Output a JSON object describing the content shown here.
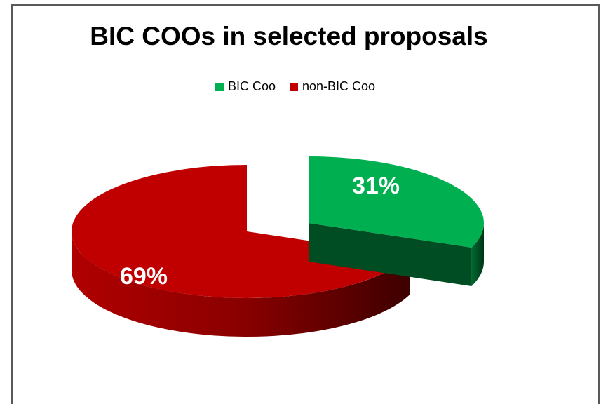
{
  "chart_data": {
    "type": "pie",
    "title": "BIC COOs in selected proposals",
    "legend_position": "top",
    "slices": [
      {
        "name": "BIC Coo",
        "value": 31,
        "label": "31%",
        "color": "#00b050",
        "side_color": "#004d24",
        "exploded": true
      },
      {
        "name": "non-BIC Coo",
        "value": 69,
        "label": "69%",
        "color": "#c00000",
        "side_color": "#5a0000",
        "exploded": false
      }
    ]
  }
}
